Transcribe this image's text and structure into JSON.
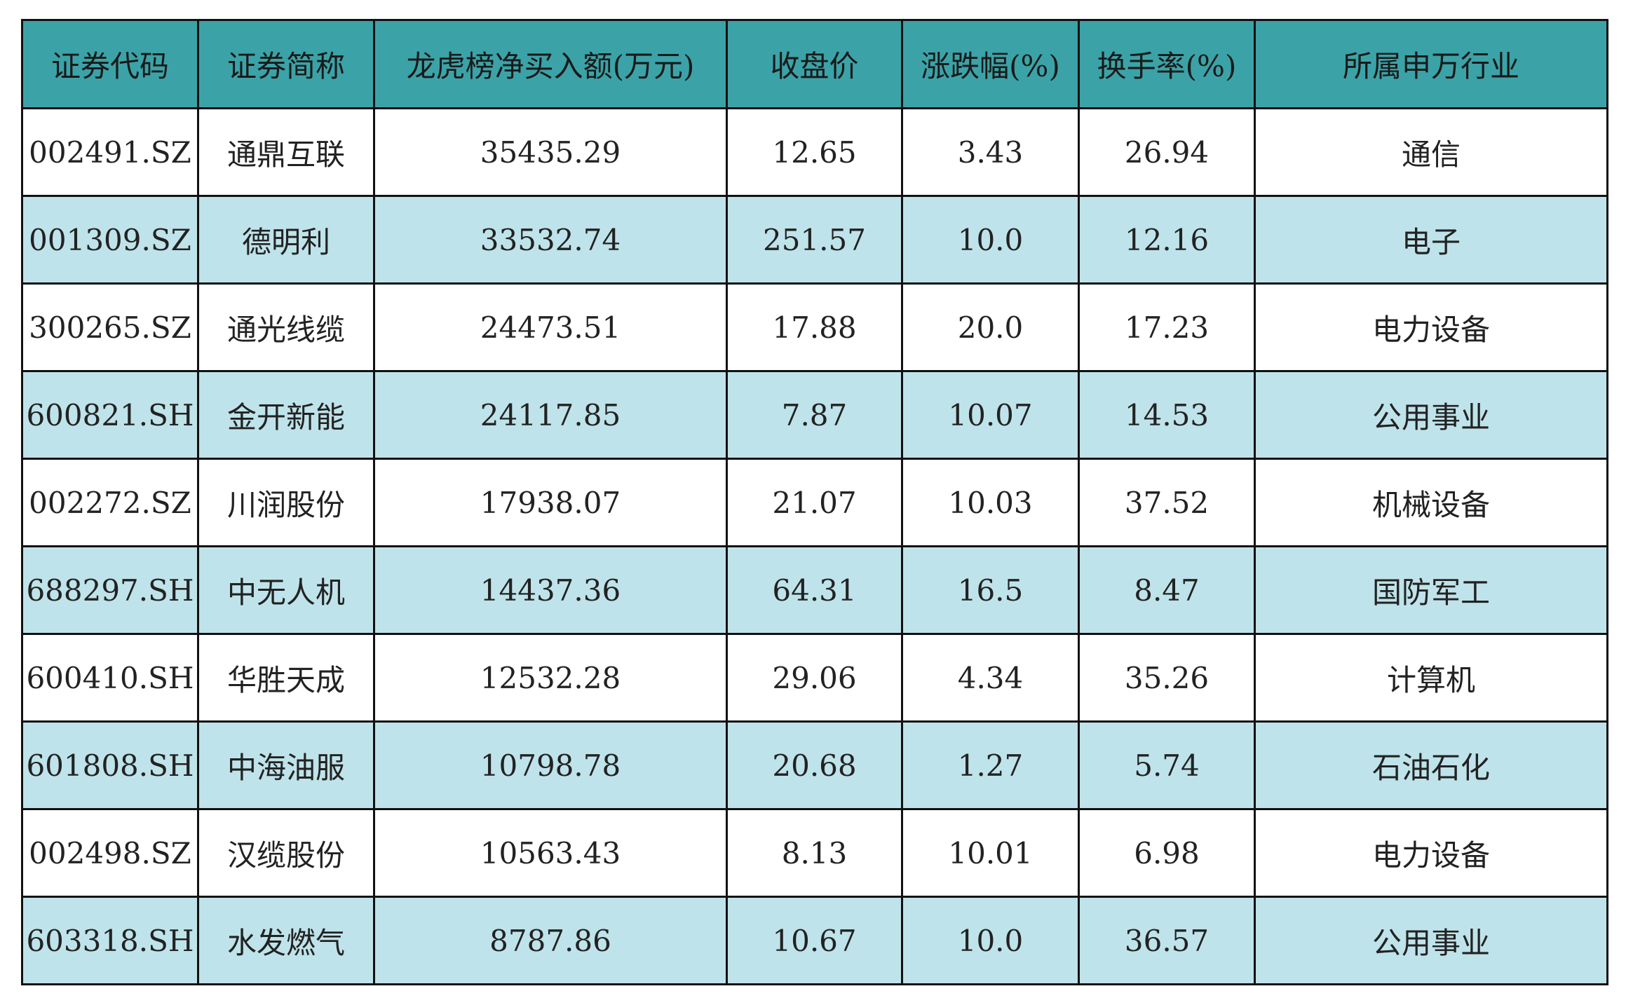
{
  "table": {
    "header": [
      "证券代码",
      "证券简称",
      "龙虎榜净买入额(万元)",
      "收盘价",
      "涨跌幅(%)",
      "换手率(%)",
      "所属申万行业"
    ],
    "rows": [
      [
        "002491.SZ",
        "通鼎互联",
        "35435.29",
        "12.65",
        "3.43",
        "26.94",
        "通信"
      ],
      [
        "001309.SZ",
        "德明利",
        "33532.74",
        "251.57",
        "10.0",
        "12.16",
        "电子"
      ],
      [
        "300265.SZ",
        "通光线缆",
        "24473.51",
        "17.88",
        "20.0",
        "17.23",
        "电力设备"
      ],
      [
        "600821.SH",
        "金开新能",
        "24117.85",
        "7.87",
        "10.07",
        "14.53",
        "公用事业"
      ],
      [
        "002272.SZ",
        "川润股份",
        "17938.07",
        "21.07",
        "10.03",
        "37.52",
        "机械设备"
      ],
      [
        "688297.SH",
        "中无人机",
        "14437.36",
        "64.31",
        "16.5",
        "8.47",
        "国防军工"
      ],
      [
        "600410.SH",
        "华胜天成",
        "12532.28",
        "29.06",
        "4.34",
        "35.26",
        "计算机"
      ],
      [
        "601808.SH",
        "中海油服",
        "10798.78",
        "20.68",
        "1.27",
        "5.74",
        "石油石化"
      ],
      [
        "002498.SZ",
        "汉缆股份",
        "10563.43",
        "8.13",
        "10.01",
        "6.98",
        "电力设备"
      ],
      [
        "603318.SH",
        "水发燃气",
        "8787.86",
        "10.67",
        "10.0",
        "36.57",
        "公用事业"
      ]
    ]
  }
}
